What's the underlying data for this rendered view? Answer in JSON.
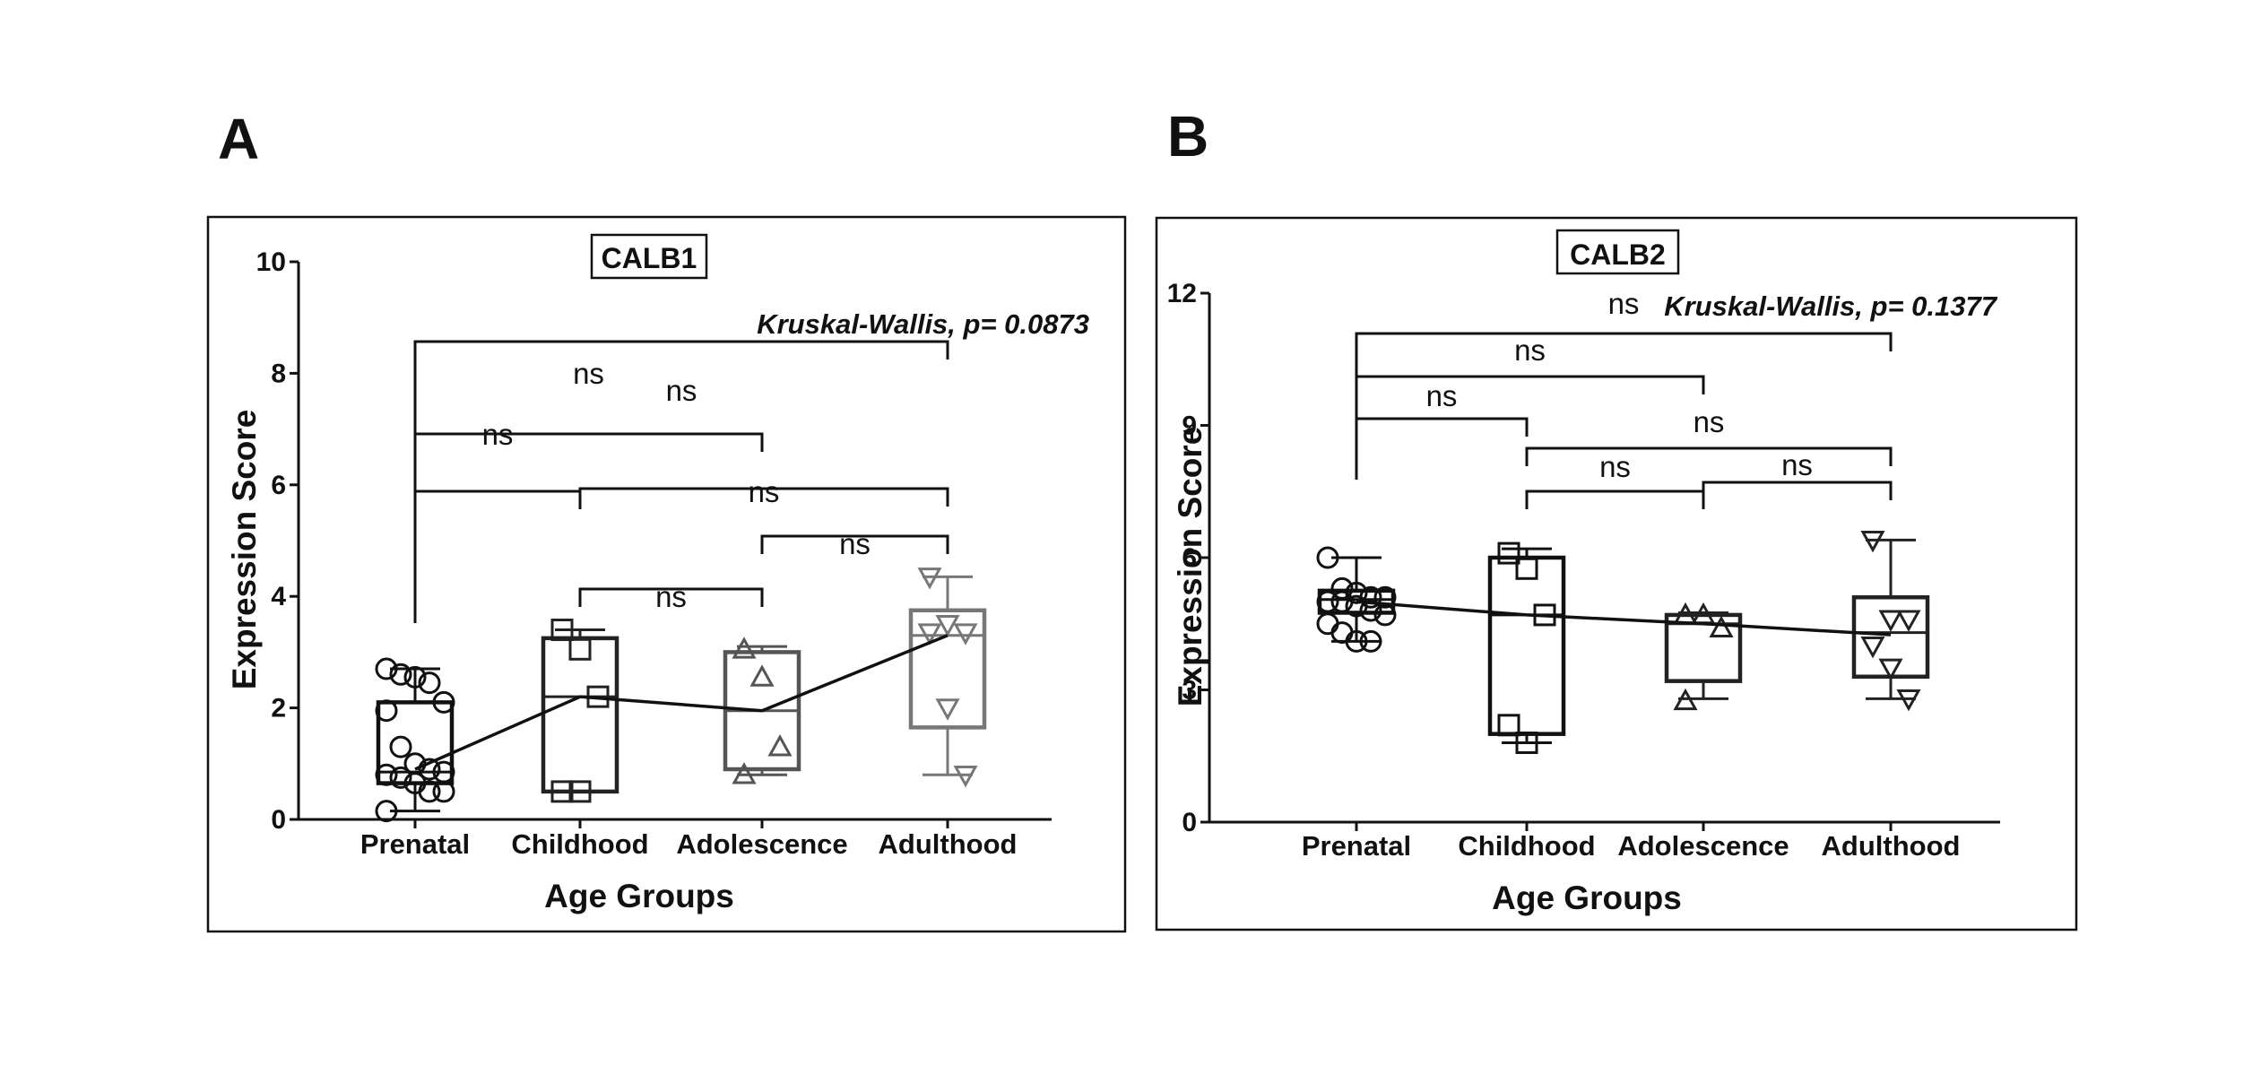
{
  "panels": [
    {
      "letter": "A"
    },
    {
      "letter": "B"
    }
  ],
  "chart_data": [
    {
      "type": "box",
      "title": "CALB1",
      "xlabel": "Age Groups",
      "ylabel": "Expression Score",
      "ylim": [
        0,
        10
      ],
      "yticks": [
        "0",
        "2",
        "4",
        "6",
        "8",
        "10"
      ],
      "categories": [
        "Prenatal",
        "Childhood",
        "Adolescence",
        "Adulthood"
      ],
      "annotation": "Kruskal-Wallis, p= 0.0873",
      "box_stats": [
        {
          "min": 0.15,
          "q1": 0.65,
          "median": 0.85,
          "q3": 2.1,
          "max": 2.7
        },
        {
          "min": 0.5,
          "q1": 0.5,
          "median": 2.2,
          "q3": 3.25,
          "max": 3.4
        },
        {
          "min": 0.8,
          "q1": 0.9,
          "median": 1.95,
          "q3": 3.0,
          "max": 3.1
        },
        {
          "min": 0.8,
          "q1": 1.65,
          "median": 3.3,
          "q3": 3.75,
          "max": 4.35
        }
      ],
      "points": [
        [
          2.7,
          2.6,
          2.55,
          2.45,
          2.1,
          1.95,
          1.3,
          1.0,
          0.9,
          0.85,
          0.8,
          0.75,
          0.65,
          0.5,
          0.5,
          0.15
        ],
        [
          3.4,
          3.05,
          2.2,
          0.5,
          0.5
        ],
        [
          3.05,
          2.55,
          1.3,
          0.8
        ],
        [
          4.35,
          3.5,
          3.35,
          3.35,
          2.0,
          0.8
        ]
      ],
      "trend": [
        0.9,
        2.2,
        1.95,
        3.3
      ],
      "comparisons": [
        {
          "from": 0,
          "to": 3,
          "label": "ns"
        },
        {
          "from": 0,
          "to": 2,
          "label": "ns"
        },
        {
          "from": 0,
          "to": 1,
          "label": "ns"
        },
        {
          "from": 1,
          "to": 3,
          "label": "ns"
        },
        {
          "from": 2,
          "to": 3,
          "label": "ns"
        },
        {
          "from": 1,
          "to": 2,
          "label": "ns"
        }
      ],
      "marker": [
        "circle",
        "square",
        "triangle-up",
        "triangle-down"
      ],
      "box_colors": [
        "#111111",
        "#222222",
        "#555555",
        "#777777"
      ],
      "legend": "none",
      "grid": false
    },
    {
      "type": "box",
      "title": "CALB2",
      "xlabel": "Age Groups",
      "ylabel": "Expression Score",
      "ylim": [
        0,
        12
      ],
      "yticks": [
        "0",
        "3",
        "6",
        "9",
        "12"
      ],
      "categories": [
        "Prenatal",
        "Childhood",
        "Adolescence",
        "Adulthood"
      ],
      "annotation": "Kruskal-Wallis, p= 0.1377",
      "box_stats": [
        {
          "min": 4.1,
          "q1": 4.75,
          "median": 5.05,
          "q3": 5.25,
          "max": 6.0
        },
        {
          "min": 1.8,
          "q1": 2.0,
          "median": 4.7,
          "q3": 6.0,
          "max": 6.2
        },
        {
          "min": 2.8,
          "q1": 3.2,
          "median": 4.5,
          "q3": 4.7,
          "max": 4.75
        },
        {
          "min": 2.8,
          "q1": 3.3,
          "median": 4.3,
          "q3": 5.1,
          "max": 6.4
        }
      ],
      "points": [
        [
          6.0,
          5.3,
          5.2,
          5.1,
          5.1,
          5.0,
          5.0,
          4.9,
          4.8,
          4.7,
          4.5,
          4.3,
          4.1,
          4.1
        ],
        [
          6.1,
          5.75,
          4.7,
          2.2,
          1.8
        ],
        [
          4.7,
          4.7,
          4.4,
          2.75
        ],
        [
          6.4,
          4.6,
          4.6,
          4.0,
          3.5,
          2.8
        ]
      ],
      "trend": [
        5.0,
        4.7,
        4.5,
        4.25
      ],
      "comparisons": [
        {
          "from": 0,
          "to": 3,
          "label": "ns"
        },
        {
          "from": 0,
          "to": 2,
          "label": "ns"
        },
        {
          "from": 0,
          "to": 1,
          "label": "ns"
        },
        {
          "from": 1,
          "to": 3,
          "label": "ns"
        },
        {
          "from": 1,
          "to": 2,
          "label": "ns"
        },
        {
          "from": 2,
          "to": 3,
          "label": "ns"
        }
      ],
      "marker": [
        "circle",
        "square",
        "triangle-up",
        "triangle-down"
      ],
      "box_colors": [
        "#111111",
        "#111111",
        "#222222",
        "#222222"
      ],
      "legend": "none",
      "grid": false
    }
  ]
}
